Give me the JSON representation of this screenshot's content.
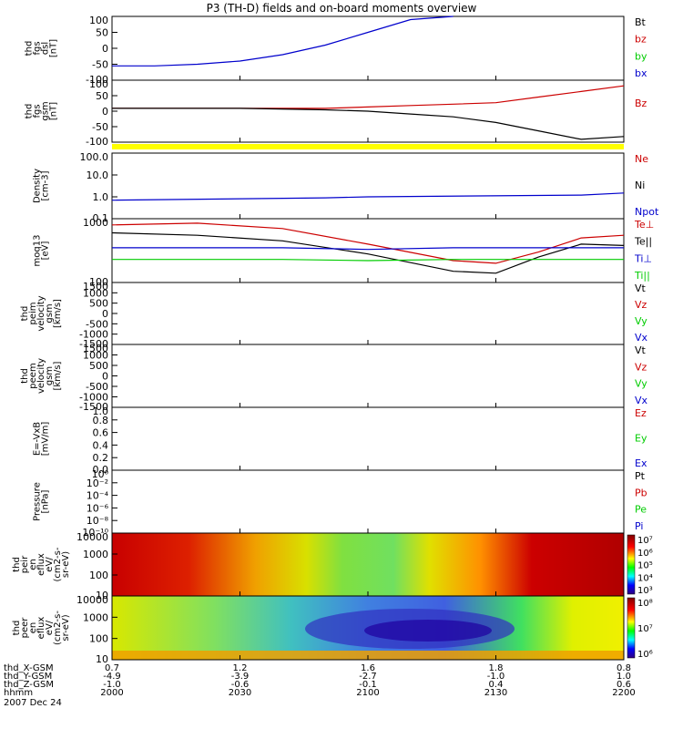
{
  "title": "P3 (TH-D) fields and on-board moments overview",
  "colors": {
    "black": "#000000",
    "red": "#cc0000",
    "green": "#00cc00",
    "blue": "#0000cc",
    "yellow": "#ffff00"
  },
  "panels": [
    {
      "id": "fgs-dsl",
      "ylabel": [
        "thd",
        "fgs",
        "dsl",
        "[nT]"
      ],
      "yticks": [
        "100",
        "50",
        "0",
        "-50",
        "-100"
      ],
      "legend": [
        {
          "text": "Bt",
          "color": "#000000"
        },
        {
          "text": "bz",
          "color": "#cc0000"
        },
        {
          "text": "by",
          "color": "#00cc00"
        },
        {
          "text": "bx",
          "color": "#0000cc"
        }
      ]
    },
    {
      "id": "fgs-gsm",
      "ylabel": [
        "thd",
        "fgs",
        "gsm",
        "[nT]"
      ],
      "yticks": [
        "100",
        "50",
        "0",
        "-50",
        "-100"
      ],
      "legend": [
        {
          "text": "Bz",
          "color": "#cc0000"
        }
      ]
    },
    {
      "id": "density",
      "ylabel": [
        "Density",
        "[cm-3]"
      ],
      "yticks": [
        "100.0",
        "10.0",
        "1.0",
        "0.1"
      ],
      "legend": [
        {
          "text": "Ne",
          "color": "#cc0000"
        },
        {
          "text": "Ni",
          "color": "#000000"
        },
        {
          "text": "Npot",
          "color": "#0000cc"
        }
      ]
    },
    {
      "id": "temp",
      "ylabel": [
        "moq13",
        "[eV]"
      ],
      "yticks": [
        "1000",
        "100"
      ],
      "legend": [
        {
          "text": "Te⊥",
          "color": "#cc0000"
        },
        {
          "text": "Te||",
          "color": "#000000"
        },
        {
          "text": "Ti⊥",
          "color": "#0000cc"
        },
        {
          "text": "Ti||",
          "color": "#00cc00"
        }
      ]
    },
    {
      "id": "peim",
      "ylabel": [
        "thd",
        "peim",
        "velocity",
        "gsm",
        "[km/s]"
      ],
      "yticks": [
        "1500",
        "1000",
        "500",
        "0",
        "-500",
        "-1000",
        "-1500"
      ],
      "legend": [
        {
          "text": "Vt",
          "color": "#000000"
        },
        {
          "text": "Vz",
          "color": "#cc0000"
        },
        {
          "text": "Vy",
          "color": "#00cc00"
        },
        {
          "text": "Vx",
          "color": "#0000cc"
        }
      ]
    },
    {
      "id": "peem",
      "ylabel": [
        "thd",
        "peem",
        "velocity",
        "gsm",
        "[km/s]"
      ],
      "yticks": [
        "1500",
        "1000",
        "500",
        "0",
        "-500",
        "-1000",
        "-1500"
      ],
      "legend": [
        {
          "text": "Vt",
          "color": "#000000"
        },
        {
          "text": "Vz",
          "color": "#cc0000"
        },
        {
          "text": "Vy",
          "color": "#00cc00"
        },
        {
          "text": "Vx",
          "color": "#0000cc"
        }
      ]
    },
    {
      "id": "efield",
      "ylabel": [
        "E=-VxB",
        "[mV/m]"
      ],
      "yticks": [
        "1.0",
        "0.8",
        "0.6",
        "0.4",
        "0.2",
        "0.0"
      ],
      "legend": [
        {
          "text": "Ez",
          "color": "#cc0000"
        },
        {
          "text": "Ey",
          "color": "#00cc00"
        },
        {
          "text": "Ex",
          "color": "#0000cc"
        }
      ]
    },
    {
      "id": "pressure",
      "ylabel": [
        "Pressure",
        "[nPa]"
      ],
      "yticks": [
        "10⁰",
        "10⁻²",
        "10⁻⁴",
        "10⁻⁶",
        "10⁻⁸",
        "10⁻¹⁰"
      ],
      "legend": [
        {
          "text": "Pt",
          "color": "#000000"
        },
        {
          "text": "Pb",
          "color": "#cc0000"
        },
        {
          "text": "Pe",
          "color": "#00cc00"
        },
        {
          "text": "Pi",
          "color": "#0000cc"
        }
      ]
    },
    {
      "id": "peir",
      "ylabel": [
        "thd",
        "peir",
        "en",
        "eflux",
        "eV/",
        "(cm2-s-",
        "sr-eV)"
      ],
      "yticks": [
        "10000",
        "1000",
        "100",
        "10"
      ],
      "colorbar": [
        "10⁷",
        "10⁶",
        "10⁵",
        "10⁴",
        "10³"
      ]
    },
    {
      "id": "peer",
      "ylabel": [
        "thd",
        "peer",
        "en",
        "eflux",
        "eV/",
        "(cm2-s-",
        "sr-eV)"
      ],
      "yticks": [
        "10000",
        "1000",
        "100",
        "10"
      ],
      "colorbar": [
        "10⁸",
        "10⁷",
        "10⁶"
      ]
    }
  ],
  "xaxis": {
    "row_labels": [
      "thd_X-GSM",
      "thd_Y-GSM",
      "thd_Z-GSM",
      "hhmm",
      "2007 Dec 24"
    ],
    "columns": [
      {
        "x": "0.7",
        "y": "-4.9",
        "z": "-1.0",
        "t": "2000"
      },
      {
        "x": "1.2",
        "y": "-3.9",
        "z": "-0.6",
        "t": "2030"
      },
      {
        "x": "1.6",
        "y": "-2.7",
        "z": "-0.1",
        "t": "2100"
      },
      {
        "x": "1.8",
        "y": "-1.0",
        "z": "0.4",
        "t": "2130"
      },
      {
        "x": "0.8",
        "y": "1.0",
        "z": "0.6",
        "t": "2200"
      }
    ]
  },
  "chart_data": {
    "type": "line",
    "title": "P3 (TH-D) fields and on-board moments overview",
    "x_range": [
      "2000",
      "2200"
    ],
    "x_unit": "hhmm, 2007 Dec 24",
    "series": [
      {
        "name": "bx",
        "panel": "fgs-dsl",
        "x": [
          "2000",
          "2010",
          "2020",
          "2030",
          "2040",
          "2050",
          "2100",
          "2110",
          "2120"
        ],
        "values": [
          -55,
          -55,
          -50,
          -40,
          -20,
          10,
          50,
          90,
          110
        ]
      },
      {
        "name": "Bz",
        "panel": "fgs-gsm",
        "x": [
          "2000",
          "2030",
          "2050",
          "2100",
          "2110",
          "2120",
          "2130",
          "2140",
          "2150",
          "2200"
        ],
        "values": [
          0,
          0,
          0,
          5,
          10,
          15,
          20,
          40,
          60,
          80
        ]
      },
      {
        "name": "by",
        "panel": "fgs-gsm",
        "x": [
          "2000",
          "2030",
          "2050",
          "2100",
          "2110",
          "2120",
          "2130",
          "2140",
          "2150",
          "2200"
        ],
        "values": [
          0,
          0,
          -5,
          -10,
          -20,
          -30,
          -50,
          -80,
          -110,
          -100
        ]
      },
      {
        "name": "Npot",
        "panel": "density",
        "x": [
          "2000",
          "2050",
          "2100",
          "2150",
          "2200"
        ],
        "values": [
          0.7,
          0.9,
          1.0,
          1.2,
          1.5
        ]
      },
      {
        "name": "Te⊥",
        "panel": "temp",
        "x": [
          "2000",
          "2020",
          "2040",
          "2100",
          "2120",
          "2130",
          "2140",
          "2150",
          "2200"
        ],
        "values": [
          800,
          850,
          700,
          400,
          220,
          200,
          300,
          500,
          550
        ]
      },
      {
        "name": "Te||",
        "panel": "temp",
        "x": [
          "2000",
          "2020",
          "2040",
          "2100",
          "2120",
          "2130",
          "2140",
          "2150",
          "2200"
        ],
        "values": [
          600,
          550,
          450,
          280,
          150,
          140,
          250,
          400,
          380
        ]
      },
      {
        "name": "Ti⊥",
        "panel": "temp",
        "x": [
          "2000",
          "2020",
          "2040",
          "2100",
          "2120",
          "2130",
          "2140",
          "2150",
          "2200"
        ],
        "values": [
          350,
          350,
          350,
          330,
          350,
          350,
          350,
          350,
          350
        ]
      },
      {
        "name": "Ti||",
        "panel": "temp",
        "x": [
          "2000",
          "2020",
          "2040",
          "2100",
          "2120",
          "2130",
          "2140",
          "2150",
          "2200"
        ],
        "values": [
          230,
          230,
          230,
          220,
          230,
          230,
          230,
          230,
          230
        ]
      }
    ]
  }
}
